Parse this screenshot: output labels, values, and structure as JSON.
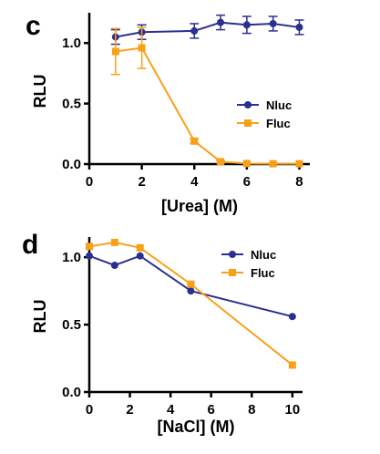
{
  "colors": {
    "nluc": "#2b2f8f",
    "fluc": "#f7a11a",
    "axis": "#000000"
  },
  "chart_data": [
    {
      "panel": "c",
      "type": "line",
      "xlabel": "[Urea] (M)",
      "ylabel": "RLU",
      "xlim": [
        0,
        8.4
      ],
      "ylim": [
        0,
        1.25
      ],
      "xticks": [
        "0",
        "2",
        "4",
        "6",
        "8"
      ],
      "xtick_values": [
        0,
        2,
        4,
        6,
        8
      ],
      "yticks": [
        "0.0",
        "0.5",
        "1.0"
      ],
      "ytick_values": [
        0,
        0.5,
        1.0
      ],
      "legend_position": "right",
      "series": [
        {
          "name": "Nluc",
          "marker": "circle",
          "x": [
            1,
            2,
            4,
            5,
            6,
            7,
            8
          ],
          "y": [
            1.05,
            1.09,
            1.1,
            1.17,
            1.15,
            1.16,
            1.13
          ],
          "err": [
            0.06,
            0.06,
            0.06,
            0.06,
            0.07,
            0.06,
            0.06
          ]
        },
        {
          "name": "Fluc",
          "marker": "square",
          "x": [
            1,
            2,
            4,
            5,
            6,
            7,
            8
          ],
          "y": [
            0.93,
            0.96,
            0.19,
            0.02,
            0.005,
            0.003,
            0.003
          ],
          "err": [
            0.19,
            0.17,
            0.02,
            0.01,
            0.0,
            0.0,
            0.0
          ]
        }
      ]
    },
    {
      "panel": "d",
      "type": "line",
      "xlabel": "[NaCl] (M)",
      "ylabel": "RLU",
      "xlim": [
        0,
        10.5
      ],
      "ylim": [
        0,
        1.15
      ],
      "xticks": [
        "0",
        "2",
        "4",
        "6",
        "8",
        "10"
      ],
      "xtick_values": [
        0,
        2,
        4,
        6,
        8,
        10
      ],
      "yticks": [
        "0.0",
        "0.5",
        "1.0"
      ],
      "ytick_values": [
        0,
        0.5,
        1.0
      ],
      "legend_position": "top-right",
      "series": [
        {
          "name": "Nluc",
          "marker": "circle",
          "x": [
            0,
            1.25,
            2.5,
            5,
            10
          ],
          "y": [
            1.01,
            0.94,
            1.01,
            0.75,
            0.56
          ]
        },
        {
          "name": "Fluc",
          "marker": "square",
          "x": [
            0,
            1.25,
            2.5,
            5,
            10
          ],
          "y": [
            1.08,
            1.11,
            1.07,
            0.8,
            0.2
          ]
        }
      ]
    }
  ]
}
